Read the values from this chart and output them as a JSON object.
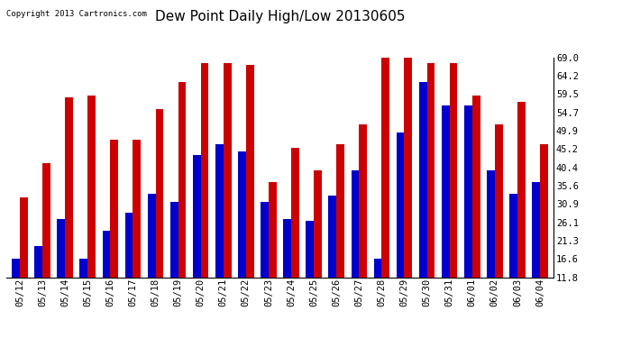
{
  "title": "Dew Point Daily High/Low 20130605",
  "copyright": "Copyright 2013 Cartronics.com",
  "yticks": [
    11.8,
    16.6,
    21.3,
    26.1,
    30.9,
    35.6,
    40.4,
    45.2,
    49.9,
    54.7,
    59.5,
    64.2,
    69.0
  ],
  "dates": [
    "05/12",
    "05/13",
    "05/14",
    "05/15",
    "05/16",
    "05/17",
    "05/18",
    "05/19",
    "05/20",
    "05/21",
    "05/22",
    "05/23",
    "05/24",
    "05/25",
    "05/26",
    "05/27",
    "05/28",
    "05/29",
    "05/30",
    "05/31",
    "06/01",
    "06/02",
    "06/03",
    "06/04"
  ],
  "low": [
    16.6,
    20.0,
    27.0,
    16.6,
    24.0,
    28.5,
    33.5,
    31.5,
    43.5,
    46.5,
    44.5,
    31.5,
    27.0,
    26.5,
    33.0,
    39.5,
    16.6,
    49.5,
    62.5,
    56.5,
    56.5,
    39.5,
    33.5,
    36.5
  ],
  "high": [
    32.5,
    41.5,
    58.5,
    59.0,
    47.5,
    47.5,
    55.5,
    62.5,
    67.5,
    67.5,
    67.0,
    36.5,
    45.5,
    39.5,
    46.5,
    51.5,
    69.0,
    69.0,
    67.5,
    67.5,
    59.0,
    51.5,
    57.5,
    46.5
  ],
  "bar_width": 0.35,
  "low_color": "#0000cc",
  "high_color": "#cc0000",
  "bg_color": "#ffffff",
  "grid_color": "#aaaaaa",
  "title_fontsize": 11,
  "tick_fontsize": 7.5,
  "ymin": 11.8,
  "ymax": 69.0
}
